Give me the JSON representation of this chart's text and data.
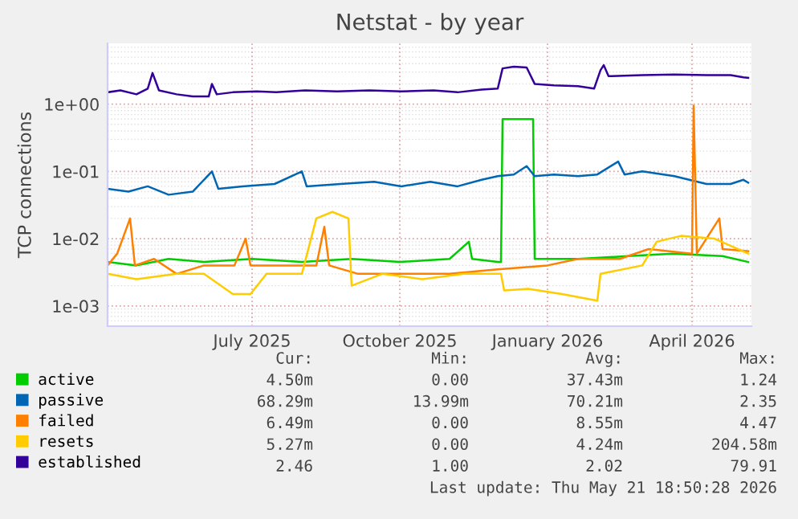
{
  "chart_data": {
    "type": "line",
    "title": "Netstat - by year",
    "ylabel": "TCP connections",
    "log": true,
    "grid": true,
    "legend": "bottom",
    "marker": "none",
    "line_style": "solid",
    "xlim": [
      "2025-04-02",
      "2026-05-08"
    ],
    "xticks": [
      {
        "value": "2025-07-01",
        "label": "July 2025"
      },
      {
        "value": "2025-10-01",
        "label": "October 2025"
      },
      {
        "value": "2026-01-01",
        "label": "January 2026"
      },
      {
        "value": "2026-04-01",
        "label": "April 2026"
      }
    ],
    "ylim": [
      0.0005,
      8
    ],
    "yticks": [
      {
        "value": 0.001,
        "label": "1e-03"
      },
      {
        "value": 0.01,
        "label": "1e-02"
      },
      {
        "value": 0.1,
        "label": "1e-01"
      },
      {
        "value": 1,
        "label": "1e+00"
      }
    ],
    "series": [
      {
        "name": "active",
        "color": "#00cc00",
        "x": [
          "2025-04-02",
          "2025-04-20",
          "2025-05-10",
          "2025-06-01",
          "2025-07-01",
          "2025-08-01",
          "2025-09-01",
          "2025-10-01",
          "2025-11-01",
          "2025-11-13",
          "2025-11-15",
          "2025-12-01",
          "2025-12-03",
          "2025-12-04",
          "2025-12-23",
          "2025-12-24",
          "2026-01-20",
          "2026-02-20",
          "2026-03-20",
          "2026-04-20",
          "2026-05-06"
        ],
        "values": [
          0.0045,
          0.004,
          0.005,
          0.0045,
          0.005,
          0.0045,
          0.005,
          0.0045,
          0.005,
          0.009,
          0.005,
          0.0045,
          0.0045,
          0.6,
          0.6,
          0.005,
          0.005,
          0.0055,
          0.006,
          0.0055,
          0.0045
        ]
      },
      {
        "name": "passive",
        "color": "#0066b3",
        "x": [
          "2025-04-02",
          "2025-04-15",
          "2025-04-27",
          "2025-05-10",
          "2025-05-25",
          "2025-06-06",
          "2025-06-10",
          "2025-06-25",
          "2025-07-15",
          "2025-08-01",
          "2025-08-04",
          "2025-08-25",
          "2025-09-15",
          "2025-10-02",
          "2025-10-20",
          "2025-11-06",
          "2025-11-21",
          "2025-12-01",
          "2025-12-11",
          "2025-12-19",
          "2025-12-24",
          "2026-01-05",
          "2026-01-20",
          "2026-02-01",
          "2026-02-14",
          "2026-02-18",
          "2026-03-01",
          "2026-03-21",
          "2026-04-10",
          "2026-04-25",
          "2026-05-03",
          "2026-05-06"
        ],
        "values": [
          0.055,
          0.05,
          0.06,
          0.045,
          0.05,
          0.1,
          0.055,
          0.06,
          0.065,
          0.1,
          0.06,
          0.065,
          0.07,
          0.06,
          0.07,
          0.06,
          0.075,
          0.085,
          0.09,
          0.12,
          0.085,
          0.09,
          0.085,
          0.09,
          0.14,
          0.09,
          0.1,
          0.085,
          0.065,
          0.065,
          0.075,
          0.068
        ]
      },
      {
        "name": "failed",
        "color": "#ff8000",
        "x": [
          "2025-04-02",
          "2025-04-08",
          "2025-04-16",
          "2025-04-19",
          "2025-05-01",
          "2025-05-15",
          "2025-06-01",
          "2025-06-20",
          "2025-06-27",
          "2025-06-30",
          "2025-07-20",
          "2025-08-10",
          "2025-08-15",
          "2025-08-18",
          "2025-09-05",
          "2025-10-01",
          "2025-11-01",
          "2025-12-01",
          "2026-01-01",
          "2026-01-20",
          "2026-02-15",
          "2026-03-05",
          "2026-04-01",
          "2026-04-02",
          "2026-04-04",
          "2026-04-18",
          "2026-04-20",
          "2026-05-06"
        ],
        "values": [
          0.004,
          0.006,
          0.02,
          0.004,
          0.005,
          0.003,
          0.004,
          0.004,
          0.01,
          0.004,
          0.004,
          0.004,
          0.015,
          0.004,
          0.003,
          0.003,
          0.003,
          0.0035,
          0.004,
          0.005,
          0.005,
          0.007,
          0.006,
          0.95,
          0.006,
          0.02,
          0.007,
          0.0065
        ]
      },
      {
        "name": "resets",
        "color": "#ffcc00",
        "x": [
          "2025-04-02",
          "2025-04-20",
          "2025-05-15",
          "2025-06-01",
          "2025-06-19",
          "2025-06-30",
          "2025-07-10",
          "2025-08-01",
          "2025-08-10",
          "2025-08-20",
          "2025-08-30",
          "2025-09-01",
          "2025-09-20",
          "2025-10-15",
          "2025-11-10",
          "2025-12-03",
          "2025-12-05",
          "2025-12-20",
          "2026-01-10",
          "2026-02-01",
          "2026-02-03",
          "2026-03-01",
          "2026-03-10",
          "2026-03-25",
          "2026-04-15",
          "2026-05-06"
        ],
        "values": [
          0.003,
          0.0025,
          0.003,
          0.003,
          0.0015,
          0.0015,
          0.003,
          0.003,
          0.02,
          0.025,
          0.02,
          0.002,
          0.003,
          0.0025,
          0.003,
          0.003,
          0.0017,
          0.0018,
          0.0015,
          0.0012,
          0.003,
          0.004,
          0.009,
          0.011,
          0.01,
          0.006
        ]
      },
      {
        "name": "established",
        "color": "#330099",
        "x": [
          "2025-04-02",
          "2025-04-10",
          "2025-04-20",
          "2025-04-27",
          "2025-04-30",
          "2025-05-04",
          "2025-05-15",
          "2025-05-25",
          "2025-06-04",
          "2025-06-06",
          "2025-06-09",
          "2025-06-19",
          "2025-07-04",
          "2025-07-16",
          "2025-08-03",
          "2025-08-23",
          "2025-09-12",
          "2025-10-02",
          "2025-10-22",
          "2025-11-06",
          "2025-11-21",
          "2025-12-01",
          "2025-12-04",
          "2025-12-11",
          "2025-12-19",
          "2025-12-24",
          "2026-01-05",
          "2026-01-20",
          "2026-01-30",
          "2026-02-03",
          "2026-02-05",
          "2026-02-08",
          "2026-03-01",
          "2026-03-21",
          "2026-04-10",
          "2026-04-25",
          "2026-05-03",
          "2026-05-06"
        ],
        "values": [
          1.5,
          1.6,
          1.4,
          1.7,
          2.9,
          1.6,
          1.4,
          1.3,
          1.3,
          2.0,
          1.4,
          1.5,
          1.55,
          1.5,
          1.6,
          1.55,
          1.6,
          1.55,
          1.6,
          1.5,
          1.65,
          1.7,
          3.4,
          3.6,
          3.5,
          2.0,
          1.9,
          1.85,
          1.7,
          3.2,
          3.8,
          2.6,
          2.7,
          2.75,
          2.7,
          2.7,
          2.5,
          2.46
        ]
      }
    ],
    "annotations": [
      "Cur:",
      "Min:",
      "Avg:",
      "Max:",
      "4.50m",
      "0.00",
      "37.43m",
      "1.24",
      "68.29m",
      "13.99m",
      "70.21m",
      "2.35",
      "6.49m",
      "0.00",
      "8.55m",
      "4.47",
      "5.27m",
      "0.00",
      "4.24m",
      "204.58m",
      "2.46",
      "1.00",
      "2.02",
      "79.91",
      "Last update: Thu May 21 18:50:28 2026"
    ]
  }
}
